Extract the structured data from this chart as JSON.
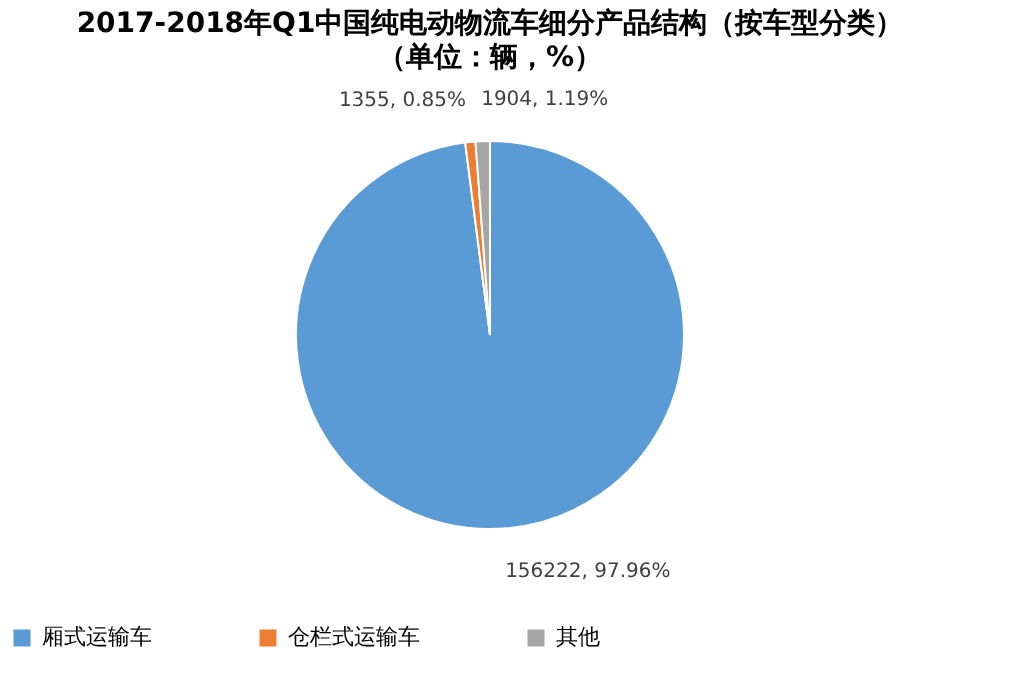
{
  "chart_data": {
    "type": "pie",
    "title": "2017-2018年Q1中国纯电动物流车细分产品结构（按车型分类）",
    "subtitle": "（单位：辆，%）",
    "categories": [
      "厢式运输车",
      "仓栏式运输车",
      "其他"
    ],
    "values": [
      156222,
      1355,
      1904
    ],
    "colors": [
      "#5b9bd5",
      "#ed7d31",
      "#a5a5a5"
    ],
    "value_labels": [
      "156222, 97.96%",
      "1355, 0.85%",
      "1904, 1.19%"
    ],
    "legend": "bottom"
  }
}
